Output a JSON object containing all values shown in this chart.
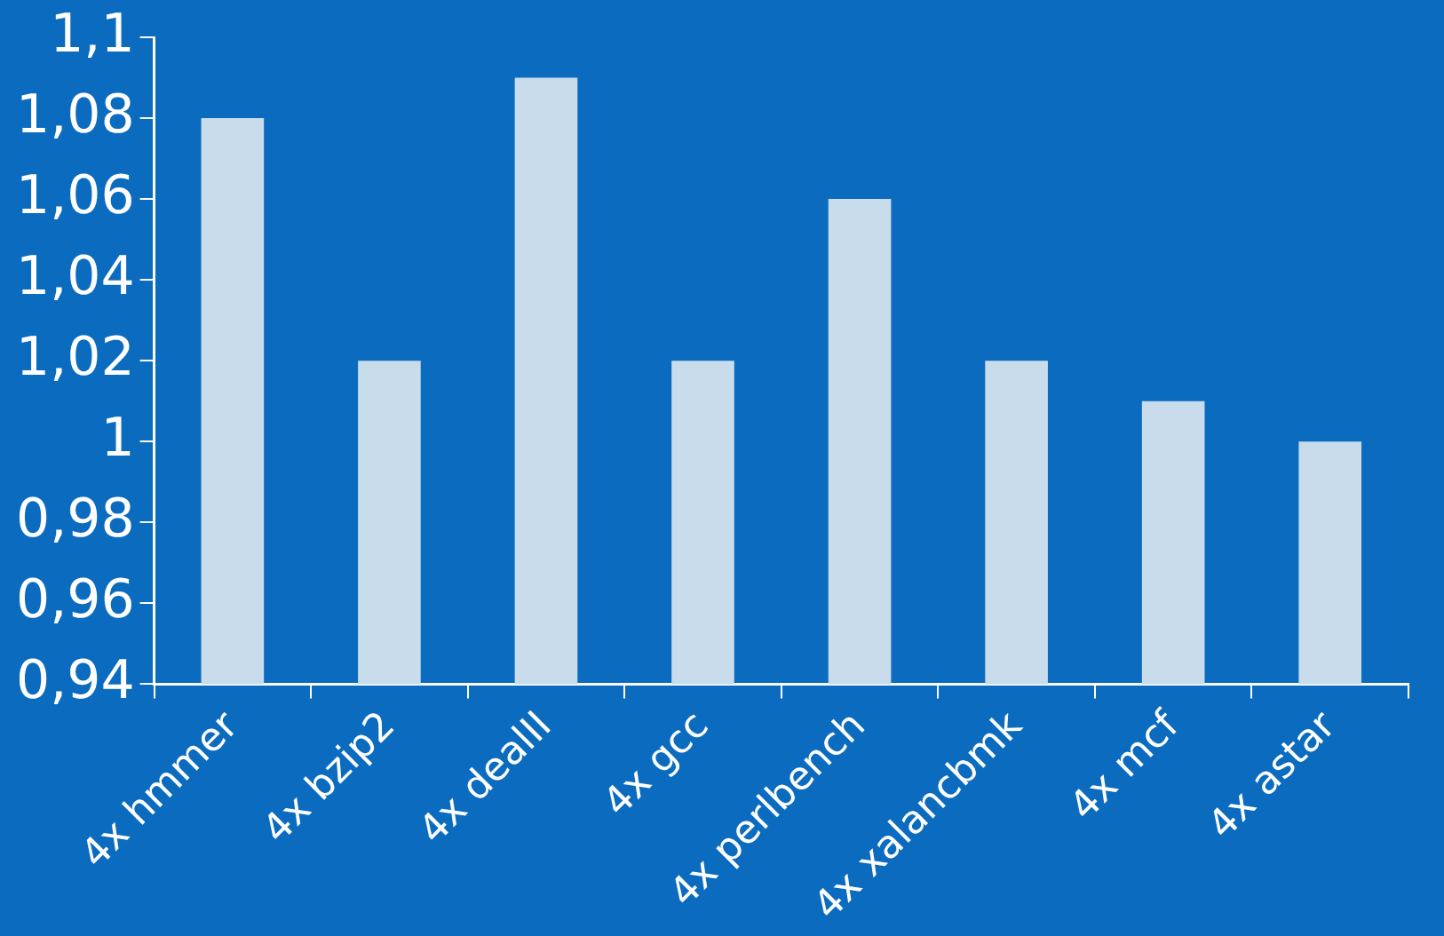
{
  "chart_data": {
    "type": "bar",
    "categories": [
      "4x hmmer",
      "4x bzip2",
      "4x dealII",
      "4x gcc",
      "4x perlbench",
      "4x xalancbmk",
      "4x mcf",
      "4x astar"
    ],
    "values": [
      1.08,
      1.02,
      1.09,
      1.02,
      1.06,
      1.02,
      1.01,
      1.0
    ],
    "color": "#c8dcec",
    "ylim": [
      0.94,
      1.1
    ],
    "yticks": [
      {
        "value": 0.94,
        "label": "0,94"
      },
      {
        "value": 0.96,
        "label": "0,96"
      },
      {
        "value": 0.98,
        "label": "0,98"
      },
      {
        "value": 1,
        "label": "1"
      },
      {
        "value": 1.02,
        "label": "1,02"
      },
      {
        "value": 1.04,
        "label": "1,04"
      },
      {
        "value": 1.06,
        "label": "1,06"
      },
      {
        "value": 1.08,
        "label": "1,08"
      },
      {
        "value": 1.1,
        "label": "1,1"
      }
    ],
    "grid": false,
    "legend": false
  }
}
